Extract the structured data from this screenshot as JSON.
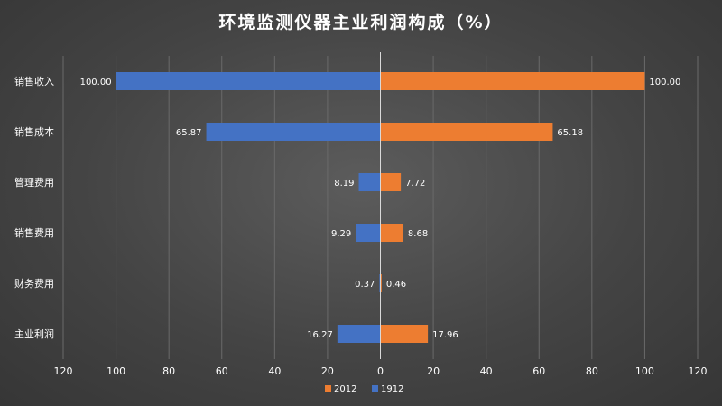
{
  "chart_data": {
    "type": "bar",
    "orientation": "horizontal",
    "layout": "diverging",
    "title": "环境监测仪器主业利润构成（%）",
    "categories": [
      "销售收入",
      "销售成本",
      "管理费用",
      "销售费用",
      "财务费用",
      "主业利润"
    ],
    "series": [
      {
        "name": "2012",
        "color": "#ED7D31",
        "side": "right",
        "values": [
          100.0,
          65.18,
          7.72,
          8.68,
          0.46,
          17.96
        ]
      },
      {
        "name": "1912",
        "color": "#4472C4",
        "side": "left",
        "values": [
          100.0,
          65.87,
          8.19,
          9.29,
          0.37,
          16.27
        ]
      }
    ],
    "xlim": [
      -120,
      120
    ],
    "x_tick_labels": [
      "120",
      "100",
      "80",
      "60",
      "40",
      "20",
      "0",
      "20",
      "40",
      "60",
      "80",
      "100",
      "120"
    ],
    "value_format": "2 decimals",
    "grid": true,
    "legend_position": "bottom"
  }
}
